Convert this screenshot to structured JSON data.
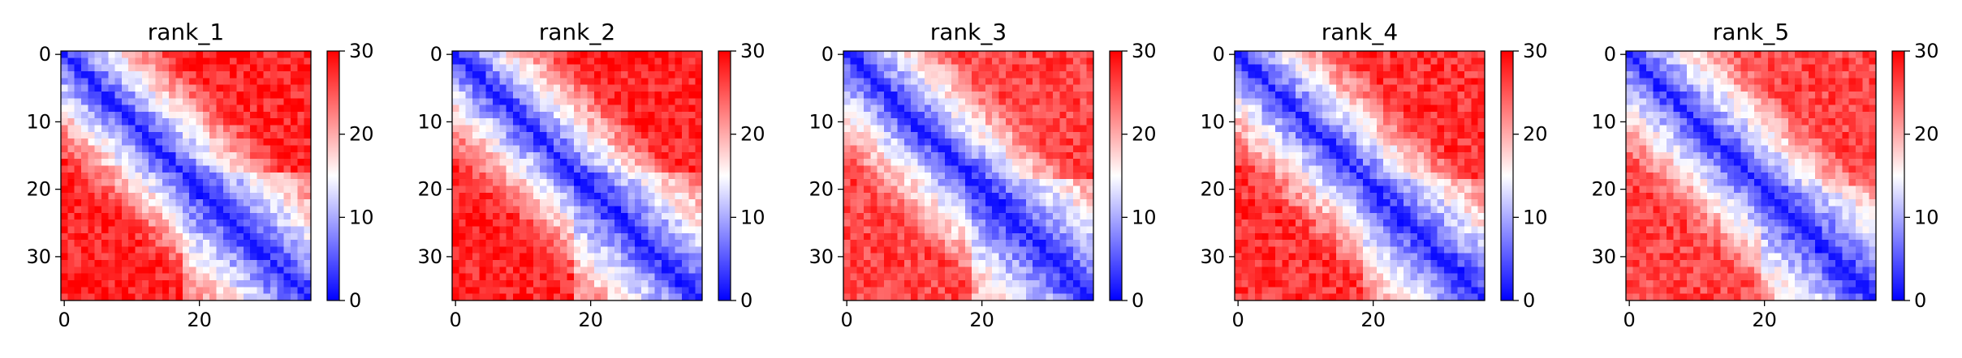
{
  "chart_data": [
    {
      "type": "heatmap",
      "title": "rank_1",
      "size": 37,
      "profile": [
        {
          "segment": [
            0,
            18
          ],
          "far_value": 28
        },
        {
          "segment": [
            18,
            37
          ],
          "far_value": 22
        }
      ],
      "diagonal_value": 1,
      "xticks": [
        0,
        20
      ],
      "yticks": [
        0,
        10,
        20,
        30
      ],
      "colorbar": {
        "min": 0,
        "max": 30,
        "ticks": [
          0,
          10,
          20,
          30
        ],
        "colormap": "bwr",
        "low": "#0000ff",
        "mid": "#ffffff",
        "high": "#ff0000"
      }
    },
    {
      "type": "heatmap",
      "title": "rank_2",
      "size": 37,
      "profile": [
        {
          "segment": [
            0,
            18
          ],
          "far_value": 28
        },
        {
          "segment": [
            18,
            37
          ],
          "far_value": 22
        }
      ],
      "diagonal_value": 1,
      "xticks": [
        0,
        20
      ],
      "yticks": [
        0,
        10,
        20,
        30
      ],
      "colorbar": {
        "min": 0,
        "max": 30,
        "ticks": [
          0,
          10,
          20,
          30
        ],
        "colormap": "bwr",
        "low": "#0000ff",
        "mid": "#ffffff",
        "high": "#ff0000"
      }
    },
    {
      "type": "heatmap",
      "title": "rank_3",
      "size": 37,
      "profile": [
        {
          "segment": [
            0,
            19
          ],
          "far_value": 26
        },
        {
          "segment": [
            19,
            37
          ],
          "far_value": 20
        }
      ],
      "diagonal_value": 1,
      "xticks": [
        0,
        20
      ],
      "yticks": [
        0,
        10,
        20,
        30
      ],
      "colorbar": {
        "min": 0,
        "max": 30,
        "ticks": [
          0,
          10,
          20,
          30
        ],
        "colormap": "bwr",
        "low": "#0000ff",
        "mid": "#ffffff",
        "high": "#ff0000"
      }
    },
    {
      "type": "heatmap",
      "title": "rank_4",
      "size": 37,
      "profile": [
        {
          "segment": [
            0,
            19
          ],
          "far_value": 27
        },
        {
          "segment": [
            19,
            37
          ],
          "far_value": 22
        }
      ],
      "diagonal_value": 1,
      "xticks": [
        0,
        20
      ],
      "yticks": [
        0,
        10,
        20,
        30
      ],
      "colorbar": {
        "min": 0,
        "max": 30,
        "ticks": [
          0,
          10,
          20,
          30
        ],
        "colormap": "bwr",
        "low": "#0000ff",
        "mid": "#ffffff",
        "high": "#ff0000"
      }
    },
    {
      "type": "heatmap",
      "title": "rank_5",
      "size": 37,
      "profile": [
        {
          "segment": [
            0,
            20
          ],
          "far_value": 26
        },
        {
          "segment": [
            20,
            37
          ],
          "far_value": 21
        }
      ],
      "diagonal_value": 1,
      "xticks": [
        0,
        20
      ],
      "yticks": [
        0,
        10,
        20,
        30
      ],
      "colorbar": {
        "min": 0,
        "max": 30,
        "ticks": [
          0,
          10,
          20,
          30
        ],
        "colormap": "bwr",
        "low": "#0000ff",
        "mid": "#ffffff",
        "high": "#ff0000"
      }
    }
  ]
}
